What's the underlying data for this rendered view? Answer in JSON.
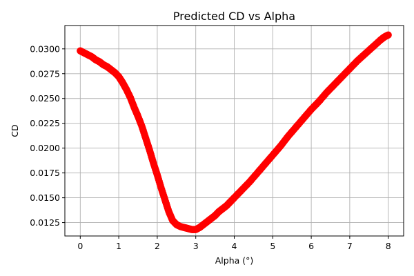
{
  "chart_data": {
    "type": "scatter",
    "title": "Predicted CD vs Alpha",
    "xlabel": "Alpha (°)",
    "ylabel": "CD",
    "xlim": [
      -0.4,
      8.4
    ],
    "ylim": [
      0.01115,
      0.03235
    ],
    "x_ticks": [
      0,
      1,
      2,
      3,
      4,
      5,
      6,
      7,
      8
    ],
    "x_tick_labels": [
      "0",
      "1",
      "2",
      "3",
      "4",
      "5",
      "6",
      "7",
      "8"
    ],
    "y_ticks": [
      0.0125,
      0.015,
      0.0175,
      0.02,
      0.0225,
      0.025,
      0.0275,
      0.03
    ],
    "y_tick_labels": [
      "0.0125",
      "0.0150",
      "0.0175",
      "0.0200",
      "0.0225",
      "0.0250",
      "0.0275",
      "0.0300"
    ],
    "grid": true,
    "series": [
      {
        "color": "#ff0000",
        "x": [
          0.0,
          0.1,
          0.2,
          0.3,
          0.4,
          0.5,
          0.6,
          0.7,
          0.8,
          0.9,
          1.0,
          1.1,
          1.2,
          1.3,
          1.4,
          1.5,
          1.6,
          1.7,
          1.8,
          1.9,
          2.0,
          2.1,
          2.2,
          2.3,
          2.4,
          2.5,
          2.6,
          2.7,
          2.8,
          2.9,
          3.0,
          3.1,
          3.2,
          3.3,
          3.4,
          3.5,
          3.6,
          3.7,
          3.8,
          3.9,
          4.0,
          4.2,
          4.4,
          4.6,
          4.8,
          5.0,
          5.2,
          5.4,
          5.6,
          5.8,
          6.0,
          6.2,
          6.4,
          6.6,
          6.8,
          7.0,
          7.2,
          7.4,
          7.6,
          7.8,
          7.9,
          8.0
        ],
        "y": [
          0.0298,
          0.0296,
          0.0294,
          0.0292,
          0.0289,
          0.0287,
          0.0284,
          0.0282,
          0.0279,
          0.0276,
          0.0272,
          0.0266,
          0.0259,
          0.0251,
          0.0241,
          0.0232,
          0.0222,
          0.021,
          0.0198,
          0.0185,
          0.0173,
          0.016,
          0.0148,
          0.0136,
          0.0127,
          0.0123,
          0.0121,
          0.012,
          0.0119,
          0.0118,
          0.0118,
          0.012,
          0.0123,
          0.0126,
          0.0129,
          0.0132,
          0.0136,
          0.0139,
          0.0142,
          0.0146,
          0.015,
          0.0158,
          0.0166,
          0.0175,
          0.0184,
          0.0193,
          0.0202,
          0.0212,
          0.0221,
          0.023,
          0.0239,
          0.0247,
          0.0256,
          0.0264,
          0.0272,
          0.028,
          0.0288,
          0.0295,
          0.0302,
          0.0309,
          0.0312,
          0.0314
        ]
      }
    ]
  }
}
